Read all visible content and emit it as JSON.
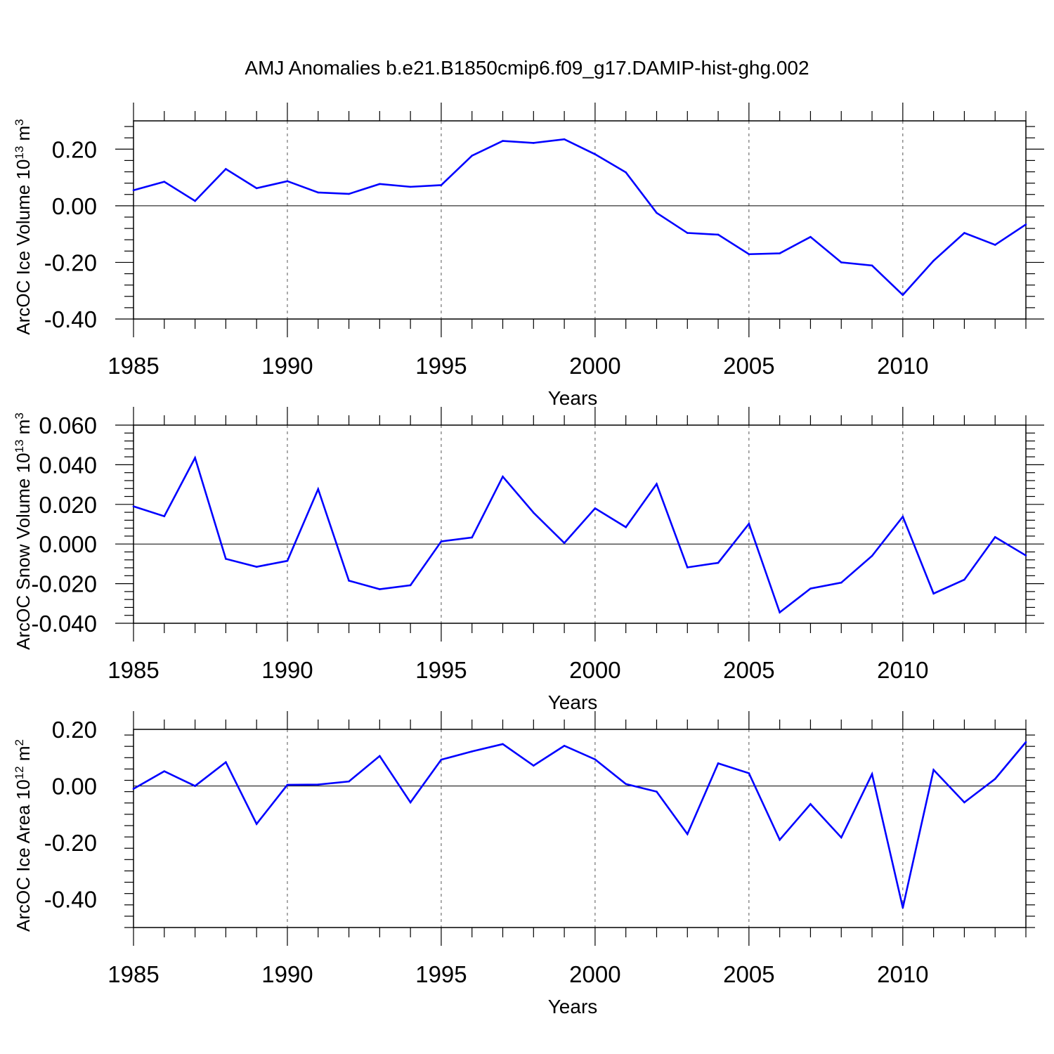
{
  "title": "AMJ Anomalies b.e21.B1850cmip6.f09_g17.DAMIP-hist-ghg.002",
  "colors": {
    "line": "#0000ff",
    "axis": "#000000",
    "grid": "#555555"
  },
  "chart_data": [
    {
      "type": "line",
      "ylabel_main": "ArcOC Ice Volume 10",
      "ylabel_exp": "13",
      "ylabel_unit": " m",
      "ylabel_unit_exp": "3",
      "xlabel": "Years",
      "xlim": [
        1985,
        2014
      ],
      "ylim": [
        -0.4,
        0.3
      ],
      "xticks": [
        "1985",
        "1990",
        "1995",
        "2000",
        "2005",
        "2010"
      ],
      "yticks": [
        "0.20",
        "0.00",
        "-0.20",
        "-0.40"
      ],
      "ytick_values": [
        0.2,
        0.0,
        -0.2,
        -0.4
      ],
      "grid_x": true,
      "x": [
        1985,
        1986,
        1987,
        1988,
        1989,
        1990,
        1991,
        1992,
        1993,
        1994,
        1995,
        1996,
        1997,
        1998,
        1999,
        2000,
        2001,
        2002,
        2003,
        2004,
        2005,
        2006,
        2007,
        2008,
        2009,
        2010,
        2011,
        2012,
        2013,
        2014
      ],
      "values": [
        0.055,
        0.085,
        0.017,
        0.13,
        0.062,
        0.087,
        0.047,
        0.042,
        0.077,
        0.067,
        0.073,
        0.177,
        0.229,
        0.222,
        0.235,
        0.182,
        0.118,
        -0.025,
        -0.096,
        -0.102,
        -0.171,
        -0.168,
        -0.11,
        -0.2,
        -0.211,
        -0.315,
        -0.194,
        -0.096,
        -0.138,
        -0.066
      ]
    },
    {
      "type": "line",
      "ylabel_main": "ArcOC Snow Volume 10",
      "ylabel_exp": "13",
      "ylabel_unit": " m",
      "ylabel_unit_exp": "3",
      "xlabel": "Years",
      "xlim": [
        1985,
        2014
      ],
      "ylim": [
        -0.04,
        0.06
      ],
      "xticks": [
        "1985",
        "1990",
        "1995",
        "2000",
        "2005",
        "2010"
      ],
      "yticks": [
        "0.060",
        "0.040",
        "0.020",
        "0.000",
        "-0.020",
        "-0.040"
      ],
      "ytick_values": [
        0.06,
        0.04,
        0.02,
        0.0,
        -0.02,
        -0.04
      ],
      "grid_x": true,
      "x": [
        1985,
        1986,
        1987,
        1988,
        1989,
        1990,
        1991,
        1992,
        1993,
        1994,
        1995,
        1996,
        1997,
        1998,
        1999,
        2000,
        2001,
        2002,
        2003,
        2004,
        2005,
        2006,
        2007,
        2008,
        2009,
        2010,
        2011,
        2012,
        2013,
        2014
      ],
      "values": [
        0.019,
        0.014,
        0.0435,
        -0.0075,
        -0.0115,
        -0.0085,
        0.0277,
        -0.0185,
        -0.0228,
        -0.0208,
        0.0013,
        0.0033,
        0.034,
        0.0158,
        0.0005,
        0.018,
        0.0085,
        0.0303,
        -0.0118,
        -0.0095,
        0.0102,
        -0.0345,
        -0.0225,
        -0.0195,
        -0.006,
        0.0138,
        -0.025,
        -0.018,
        0.0035,
        -0.0058
      ]
    },
    {
      "type": "line",
      "ylabel_main": "ArcOC Ice Area 10",
      "ylabel_exp": "12",
      "ylabel_unit": " m",
      "ylabel_unit_exp": "2",
      "xlabel": "Years",
      "xlim": [
        1985,
        2014
      ],
      "ylim": [
        -0.5,
        0.2
      ],
      "xticks": [
        "1985",
        "1990",
        "1995",
        "2000",
        "2005",
        "2010"
      ],
      "yticks": [
        "0.20",
        "0.00",
        "-0.20",
        "-0.40"
      ],
      "ytick_values": [
        0.2,
        0.0,
        -0.2,
        -0.4
      ],
      "grid_x": true,
      "x": [
        1985,
        1986,
        1987,
        1988,
        1989,
        1990,
        1991,
        1992,
        1993,
        1994,
        1995,
        1996,
        1997,
        1998,
        1999,
        2000,
        2001,
        2002,
        2003,
        2004,
        2005,
        2006,
        2007,
        2008,
        2009,
        2010,
        2011,
        2012,
        2013,
        2014
      ],
      "values": [
        -0.01,
        0.052,
        0.0,
        0.084,
        -0.134,
        0.004,
        0.005,
        0.016,
        0.106,
        -0.058,
        0.093,
        0.122,
        0.148,
        0.072,
        0.142,
        0.094,
        0.007,
        -0.02,
        -0.17,
        0.08,
        0.045,
        -0.19,
        -0.064,
        -0.182,
        0.042,
        -0.43,
        0.057,
        -0.058,
        0.025,
        0.155
      ]
    }
  ]
}
